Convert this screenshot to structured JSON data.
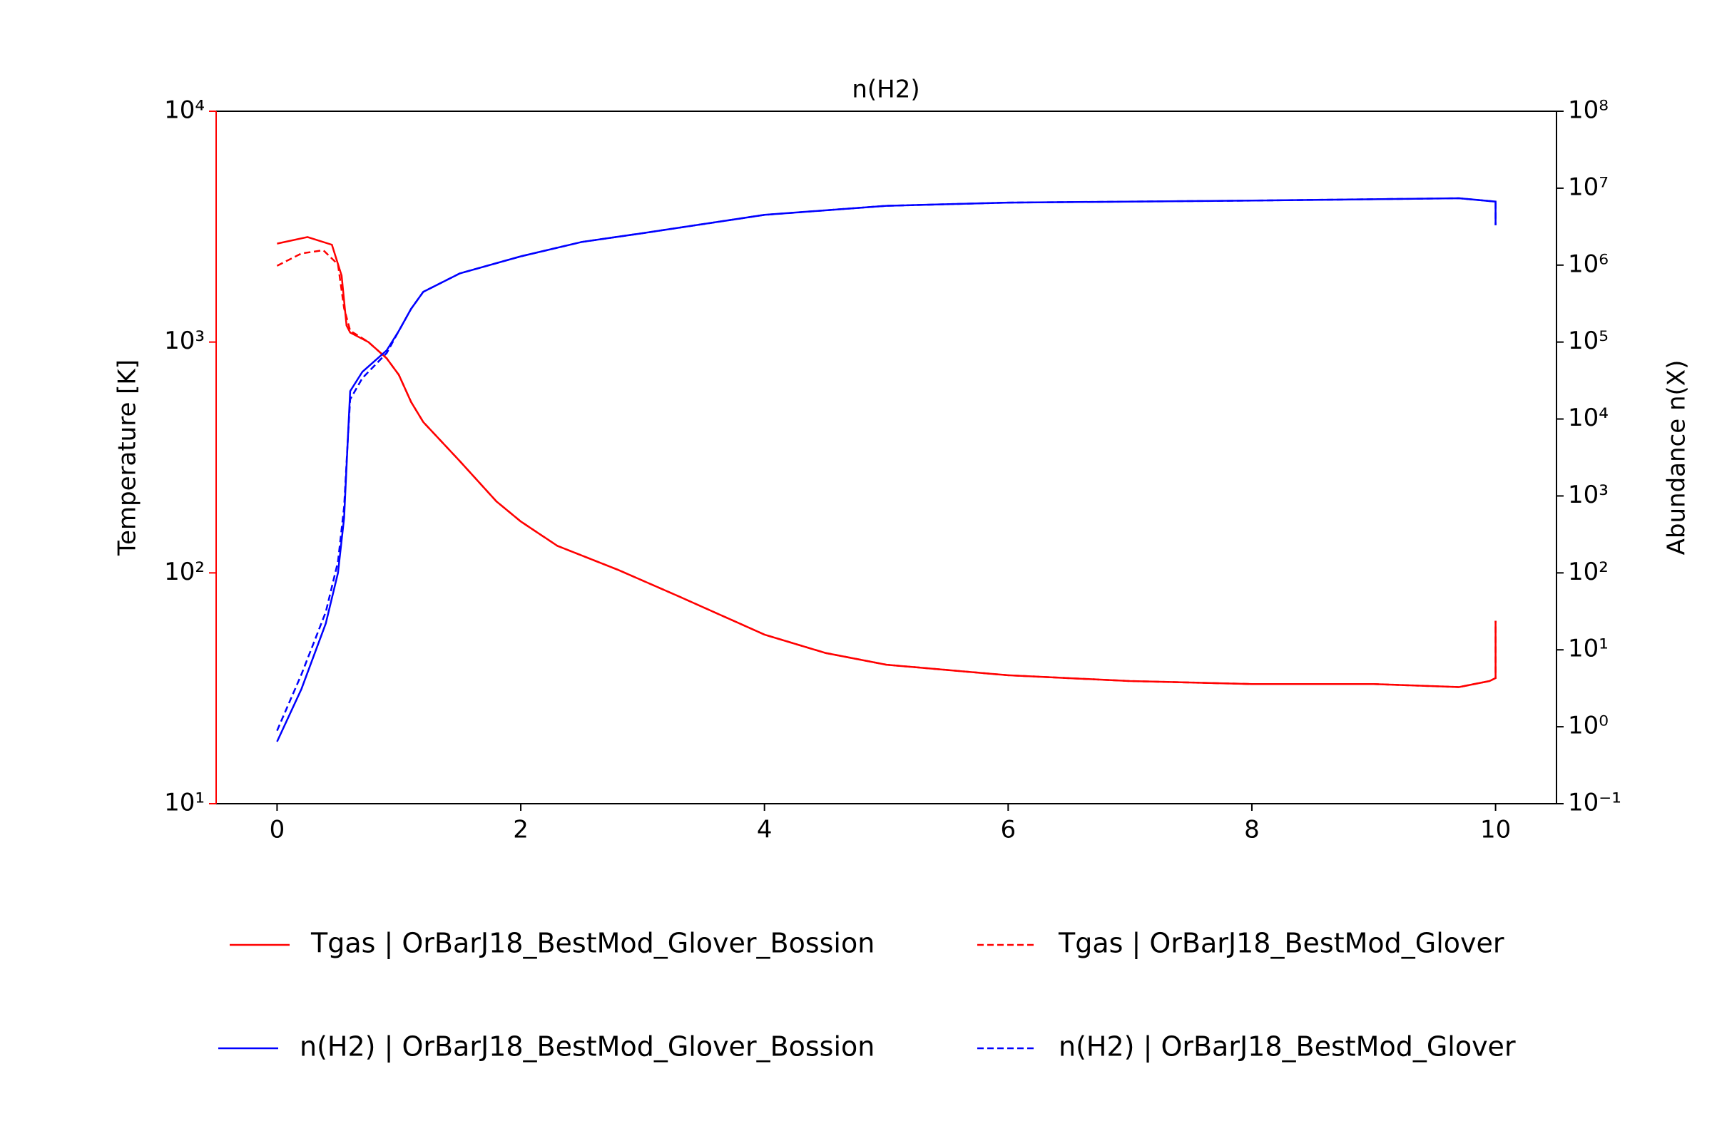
{
  "chart_data": {
    "type": "line",
    "title": "n(H2)",
    "xlim": [
      -0.5,
      10.5
    ],
    "xticks": [
      0,
      2,
      4,
      6,
      8,
      10
    ],
    "ylabel": "Temperature [K]",
    "ylabel_color": "#ff0000",
    "yscale": "log",
    "ylim": [
      10,
      10000
    ],
    "yticks": [
      {
        "value": 10,
        "label": "10¹"
      },
      {
        "value": 100,
        "label": "10²"
      },
      {
        "value": 1000,
        "label": "10³"
      },
      {
        "value": 10000,
        "label": "10⁴"
      }
    ],
    "y2label": "Abundance n(X)",
    "y2scale": "log",
    "y2lim": [
      0.1,
      100000000
    ],
    "y2ticks": [
      {
        "value": 0.1,
        "label": "10⁻¹"
      },
      {
        "value": 1,
        "label": "10⁰"
      },
      {
        "value": 10,
        "label": "10¹"
      },
      {
        "value": 100,
        "label": "10²"
      },
      {
        "value": 1000,
        "label": "10³"
      },
      {
        "value": 10000,
        "label": "10⁴"
      },
      {
        "value": 100000,
        "label": "10⁵"
      },
      {
        "value": 1000000,
        "label": "10⁶"
      },
      {
        "value": 10000000,
        "label": "10⁷"
      },
      {
        "value": 100000000,
        "label": "10⁸"
      }
    ],
    "legend": "bottom",
    "series": [
      {
        "name": "Tgas | OrBarJ18_BestMod_Glover_Bossion",
        "color": "#ff0000",
        "linestyle": "solid",
        "axis": "y",
        "x": [
          0,
          0.25,
          0.45,
          0.53,
          0.57,
          0.6,
          0.75,
          0.9,
          1.0,
          1.1,
          1.2,
          1.5,
          1.8,
          2.0,
          2.3,
          2.8,
          3.3,
          4.0,
          4.5,
          5.0,
          6.0,
          7.0,
          8.0,
          9.0,
          9.7,
          9.95,
          10,
          10
        ],
        "values": [
          2670,
          2850,
          2640,
          1940,
          1180,
          1100,
          1000,
          850,
          720,
          550,
          450,
          305,
          204,
          167,
          131,
          103,
          79,
          54,
          45,
          40,
          36,
          34,
          33,
          33,
          32,
          34,
          35,
          62
        ]
      },
      {
        "name": "Tgas | OrBarJ18_BestMod_Glover",
        "color": "#ff0000",
        "linestyle": "dashed",
        "axis": "y",
        "x": [
          0,
          0.2,
          0.38,
          0.5,
          0.55,
          0.6,
          0.75,
          0.9,
          1.0,
          1.1,
          1.2,
          1.5,
          1.8,
          2.0,
          2.3,
          2.8,
          3.3,
          4.0,
          4.5,
          5.0,
          6.0,
          7.0,
          8.0,
          9.0,
          9.7,
          9.95,
          10,
          10
        ],
        "values": [
          2140,
          2420,
          2500,
          2170,
          1400,
          1120,
          1000,
          850,
          720,
          550,
          450,
          305,
          204,
          167,
          131,
          103,
          79,
          54,
          45,
          40,
          36,
          34,
          33,
          33,
          32,
          34,
          35,
          62
        ]
      },
      {
        "name": "n(H2) | OrBarJ18_BestMod_Glover_Bossion",
        "color": "#0000ff",
        "linestyle": "solid",
        "axis": "y2",
        "x": [
          0,
          0.2,
          0.4,
          0.5,
          0.55,
          0.58,
          0.6,
          0.7,
          0.9,
          1.0,
          1.1,
          1.2,
          1.5,
          2.0,
          2.5,
          3.0,
          4.0,
          5.0,
          6.0,
          8.0,
          9.7,
          10,
          10
        ],
        "values": [
          0.64,
          3.1,
          22,
          100,
          520,
          5200,
          23000,
          41000,
          78000,
          140000,
          270000,
          450000,
          780000,
          1300000,
          2000000,
          2600000,
          4500000,
          5900000,
          6500000,
          6900000,
          7400000,
          6700000,
          3300000
        ]
      },
      {
        "name": "n(H2) | OrBarJ18_BestMod_Glover",
        "color": "#0000ff",
        "linestyle": "dashed",
        "axis": "y2",
        "x": [
          0,
          0.2,
          0.4,
          0.5,
          0.55,
          0.58,
          0.6,
          0.7,
          0.9,
          1.0,
          1.1,
          1.2,
          1.5,
          2.0,
          2.5,
          3.0,
          4.0,
          5.0,
          6.0,
          8.0,
          9.7,
          10,
          10
        ],
        "values": [
          0.89,
          4.8,
          31,
          140,
          720,
          5200,
          18000,
          34000,
          72000,
          140000,
          270000,
          450000,
          780000,
          1300000,
          2000000,
          2600000,
          4500000,
          5900000,
          6500000,
          6900000,
          7400000,
          6700000,
          3300000
        ]
      }
    ]
  }
}
